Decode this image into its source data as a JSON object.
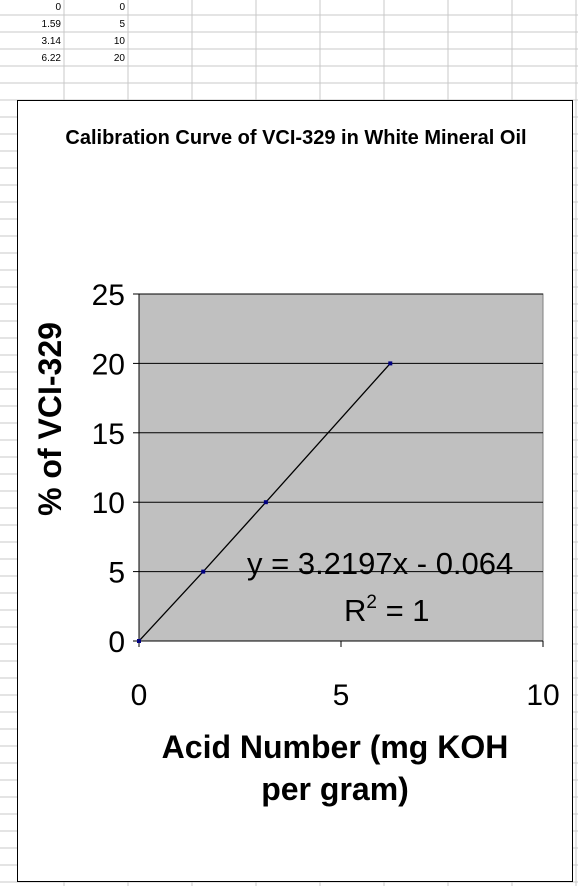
{
  "sheet": {
    "rows": [
      [
        "0",
        "0"
      ],
      [
        "1.59",
        "5"
      ],
      [
        "3.14",
        "10"
      ],
      [
        "6.22",
        "20"
      ]
    ]
  },
  "chart_data": {
    "type": "scatter",
    "title": "Calibration Curve of VCI-329 in White Mineral Oil",
    "xlabel": "Acid Number (mg KOH per gram)",
    "ylabel": "% of VCI-329",
    "xlim": [
      0,
      10
    ],
    "ylim": [
      0,
      25
    ],
    "x_ticks": [
      "0",
      "5",
      "10"
    ],
    "y_ticks": [
      "0",
      "5",
      "10",
      "15",
      "20",
      "25"
    ],
    "grid": "horizontal major",
    "plot_background": "#c0c0c0",
    "series": [
      {
        "x": [
          0,
          1.59,
          3.14,
          6.22
        ],
        "y": [
          0,
          5,
          10,
          20
        ],
        "marker_color": "#000080",
        "line_color": "#000000"
      }
    ],
    "trendline": {
      "equation": "y = 3.2197x - 0.064",
      "r2_prefix": "R",
      "r2_exponent": "2",
      "r2_suffix": " = 1"
    }
  }
}
